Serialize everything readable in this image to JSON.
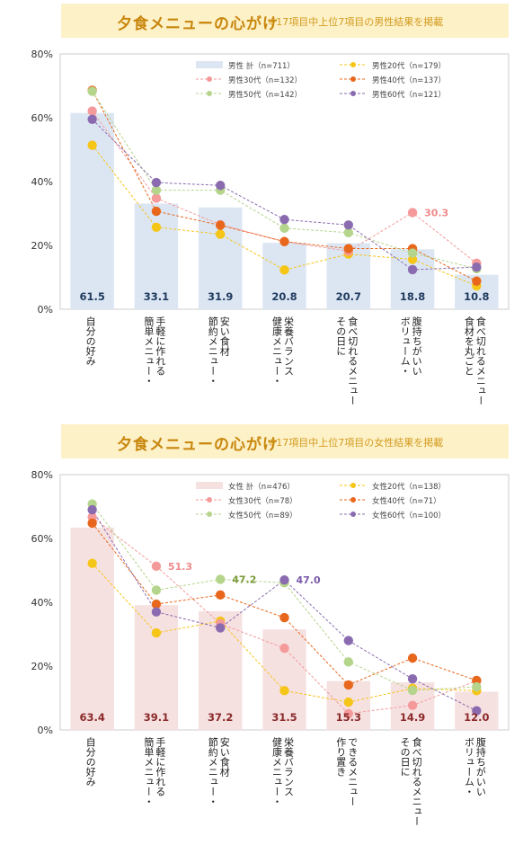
{
  "chart_data": [
    {
      "type": "bar",
      "title": "夕食メニューの心がけ",
      "subtitle": "※17項目中上位7項目の男性結果を掲載",
      "ylim": [
        0,
        80
      ],
      "yticks": [
        "0%",
        "20%",
        "40%",
        "60%",
        "80%"
      ],
      "categories": [
        [
          "自分の好み"
        ],
        [
          "簡単メニュー・",
          "手軽に作れる"
        ],
        [
          "節約メニュー・",
          "安い食材"
        ],
        [
          "健康メニュー・",
          "栄養バランス"
        ],
        [
          "その日に",
          "食べ切れるメニュー"
        ],
        [
          "ボリューム・",
          "腹持ちがいい"
        ],
        [
          "食材を丸ごと",
          "食べ切れるメニュー"
        ]
      ],
      "bar": {
        "name": "男性 計（n=711）",
        "values": [
          61.5,
          33.1,
          31.9,
          20.8,
          20.7,
          18.8,
          10.8
        ],
        "color": "#dce6f3",
        "label_color": "#1f3b5e"
      },
      "series": [
        {
          "name": "男性20代（n=179）",
          "color": "#f5c518",
          "values": [
            51.4,
            25.7,
            23.5,
            12.3,
            17.3,
            15.6,
            7.3
          ]
        },
        {
          "name": "男性30代（n=132）",
          "color": "#f59a9a",
          "values": [
            62.1,
            34.8,
            26.5,
            21.2,
            18.2,
            30.3,
            14.4
          ]
        },
        {
          "name": "男性40代（n=137）",
          "color": "#e8671c",
          "values": [
            68.6,
            30.7,
            26.3,
            21.2,
            19.0,
            19.0,
            8.8
          ]
        },
        {
          "name": "男性50代（n=142）",
          "color": "#b5d58c",
          "values": [
            68.3,
            37.3,
            37.3,
            25.4,
            24.0,
            17.6,
            12.7
          ]
        },
        {
          "name": "男性60代（n=121）",
          "color": "#8b6bb0",
          "values": [
            59.5,
            39.7,
            38.8,
            28.1,
            26.4,
            12.4,
            13.2
          ]
        }
      ],
      "callouts": [
        {
          "series": 1,
          "index": 5,
          "text": "30.3",
          "color": "#f08a8a"
        }
      ]
    },
    {
      "type": "bar",
      "title": "夕食メニューの心がけ",
      "subtitle": "※17項目中上位7項目の女性結果を掲載",
      "ylim": [
        0,
        80
      ],
      "yticks": [
        "0%",
        "20%",
        "40%",
        "60%",
        "80%"
      ],
      "categories": [
        [
          "自分の好み"
        ],
        [
          "簡単メニュー・",
          "手軽に作れる"
        ],
        [
          "節約メニュー・",
          "安い食材"
        ],
        [
          "健康メニュー・",
          "栄養バランス"
        ],
        [
          "作り置き",
          "できるメニュー"
        ],
        [
          "その日に",
          "食べ切れるメニュー"
        ],
        [
          "ボリューム・",
          "腹持ちがいい"
        ]
      ],
      "bar": {
        "name": "女性 計（n=476）",
        "values": [
          63.4,
          39.1,
          37.2,
          31.5,
          15.3,
          14.9,
          12.0
        ],
        "color": "#f6e1e1",
        "label_color": "#8b2a2a"
      },
      "series": [
        {
          "name": "女性20代（n=138）",
          "color": "#f5c518",
          "values": [
            52.2,
            30.4,
            34.1,
            12.3,
            8.7,
            13.0,
            12.3
          ]
        },
        {
          "name": "女性30代（n=78）",
          "color": "#f59a9a",
          "values": [
            66.7,
            51.3,
            33.3,
            25.6,
            5.1,
            7.7,
            15.4
          ]
        },
        {
          "name": "女性40代（n=71）",
          "color": "#e8671c",
          "values": [
            64.8,
            39.4,
            42.3,
            35.2,
            14.1,
            22.5,
            15.5
          ]
        },
        {
          "name": "女性50代（n=89）",
          "color": "#b5d58c",
          "values": [
            70.8,
            43.8,
            47.2,
            46.1,
            21.3,
            12.4,
            13.5
          ]
        },
        {
          "name": "女性60代（n=100）",
          "color": "#8b6bb0",
          "values": [
            69.0,
            37.0,
            32.0,
            47.0,
            28.0,
            16.0,
            6.0
          ]
        }
      ],
      "callouts": [
        {
          "series": 1,
          "index": 1,
          "text": "51.3",
          "color": "#f08a8a"
        },
        {
          "series": 3,
          "index": 2,
          "text": "47.2",
          "color": "#7a9a3a"
        },
        {
          "series": 4,
          "index": 3,
          "text": "47.0",
          "color": "#7a5aa8"
        }
      ]
    }
  ]
}
